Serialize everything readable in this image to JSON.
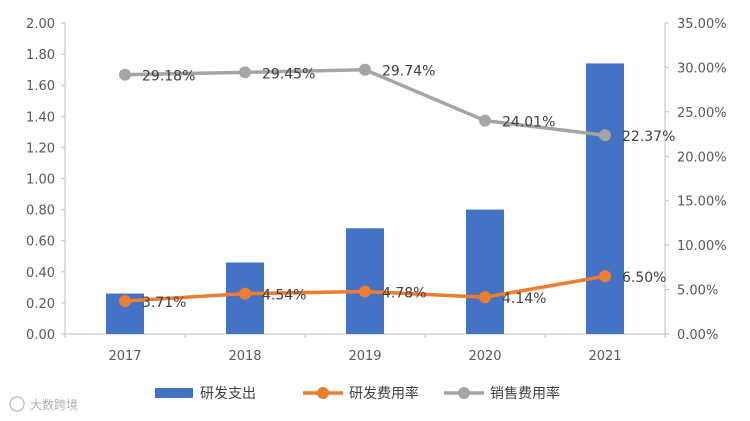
{
  "chart_data": {
    "type": "bar+line",
    "categories": [
      "2017",
      "2018",
      "2019",
      "2020",
      "2021"
    ],
    "bar_series": {
      "name": "研发支出",
      "axis": "left",
      "values": [
        0.26,
        0.46,
        0.68,
        0.8,
        1.74
      ],
      "color": "#4472C4"
    },
    "line_series": [
      {
        "name": "研发费用率",
        "axis": "right",
        "values": [
          3.71,
          4.54,
          4.78,
          4.14,
          6.5
        ],
        "labels": [
          "3.71%",
          "4.54%",
          "4.78%",
          "4.14%",
          "6.50%"
        ],
        "color": "#ED7D31"
      },
      {
        "name": "销售费用率",
        "axis": "right",
        "values": [
          29.18,
          29.45,
          29.74,
          24.01,
          22.37
        ],
        "labels": [
          "29.18%",
          "29.45%",
          "29.74%",
          "24.01%",
          "22.37%"
        ],
        "color": "#A5A5A5"
      }
    ],
    "left_axis": {
      "min": 0,
      "max": 2.0,
      "step": 0.2,
      "ticks": [
        "0.00",
        "0.20",
        "0.40",
        "0.60",
        "0.80",
        "1.00",
        "1.20",
        "1.40",
        "1.60",
        "1.80",
        "2.00"
      ]
    },
    "right_axis": {
      "min": 0,
      "max": 35,
      "step": 5,
      "ticks": [
        "0.00%",
        "5.00%",
        "10.00%",
        "15.00%",
        "20.00%",
        "25.00%",
        "30.00%",
        "35.00%"
      ]
    },
    "grid": false,
    "legend_position": "bottom"
  },
  "watermark": {
    "text": "大数跨境"
  }
}
